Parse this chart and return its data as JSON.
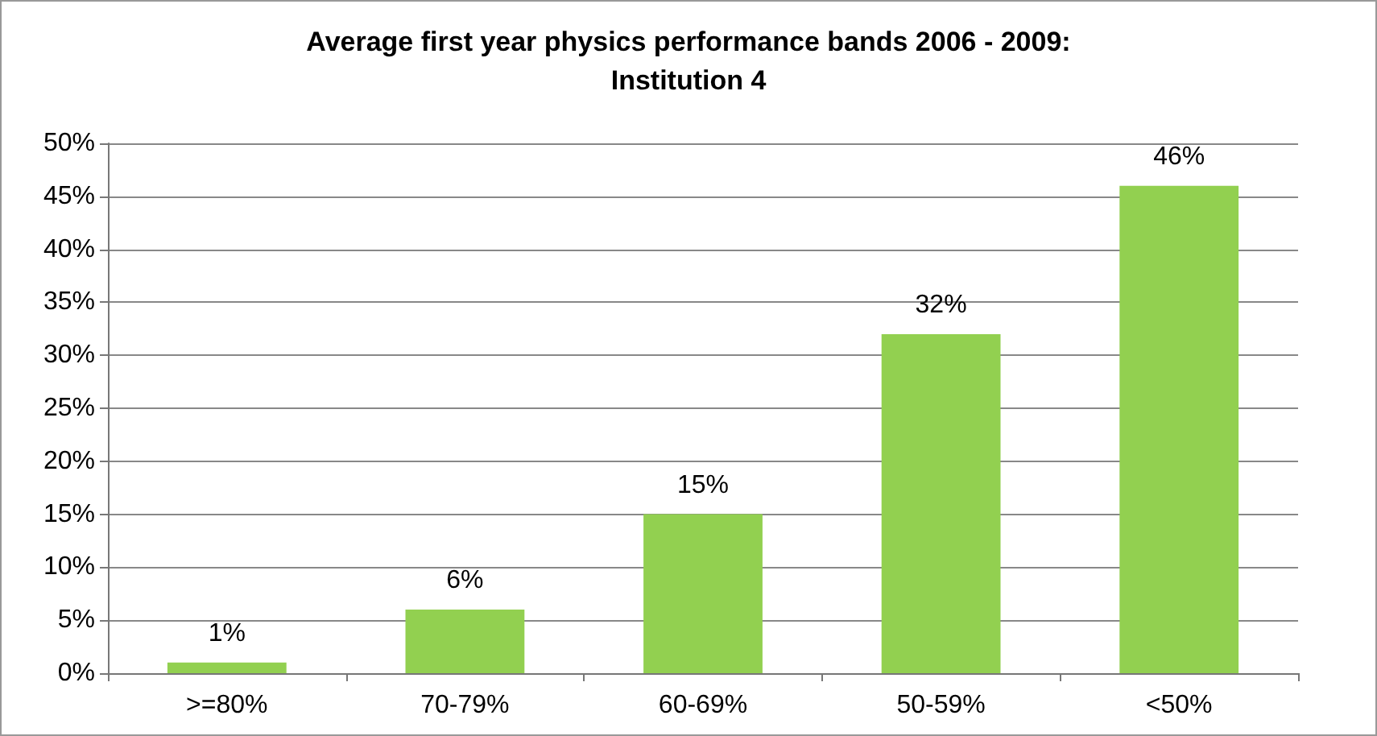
{
  "chart_data": {
    "type": "bar",
    "title": "Average first year physics performance bands 2006 - 2009:\nInstitution 4",
    "categories": [
      ">=80%",
      "70-79%",
      "60-69%",
      "50-59%",
      "<50%"
    ],
    "values": [
      1,
      6,
      15,
      32,
      46
    ],
    "value_labels": [
      "1%",
      "6%",
      "15%",
      "32%",
      "46%"
    ],
    "color": "#92d050",
    "ylim": [
      0,
      50
    ],
    "yticks": [
      {
        "value": 0,
        "label": "0%"
      },
      {
        "value": 5,
        "label": "5%"
      },
      {
        "value": 10,
        "label": "10%"
      },
      {
        "value": 15,
        "label": "15%"
      },
      {
        "value": 20,
        "label": "20%"
      },
      {
        "value": 25,
        "label": "25%"
      },
      {
        "value": 30,
        "label": "30%"
      },
      {
        "value": 35,
        "label": "35%"
      },
      {
        "value": 40,
        "label": "40%"
      },
      {
        "value": 45,
        "label": "45%"
      },
      {
        "value": 50,
        "label": "50%"
      }
    ],
    "grid": "y"
  }
}
